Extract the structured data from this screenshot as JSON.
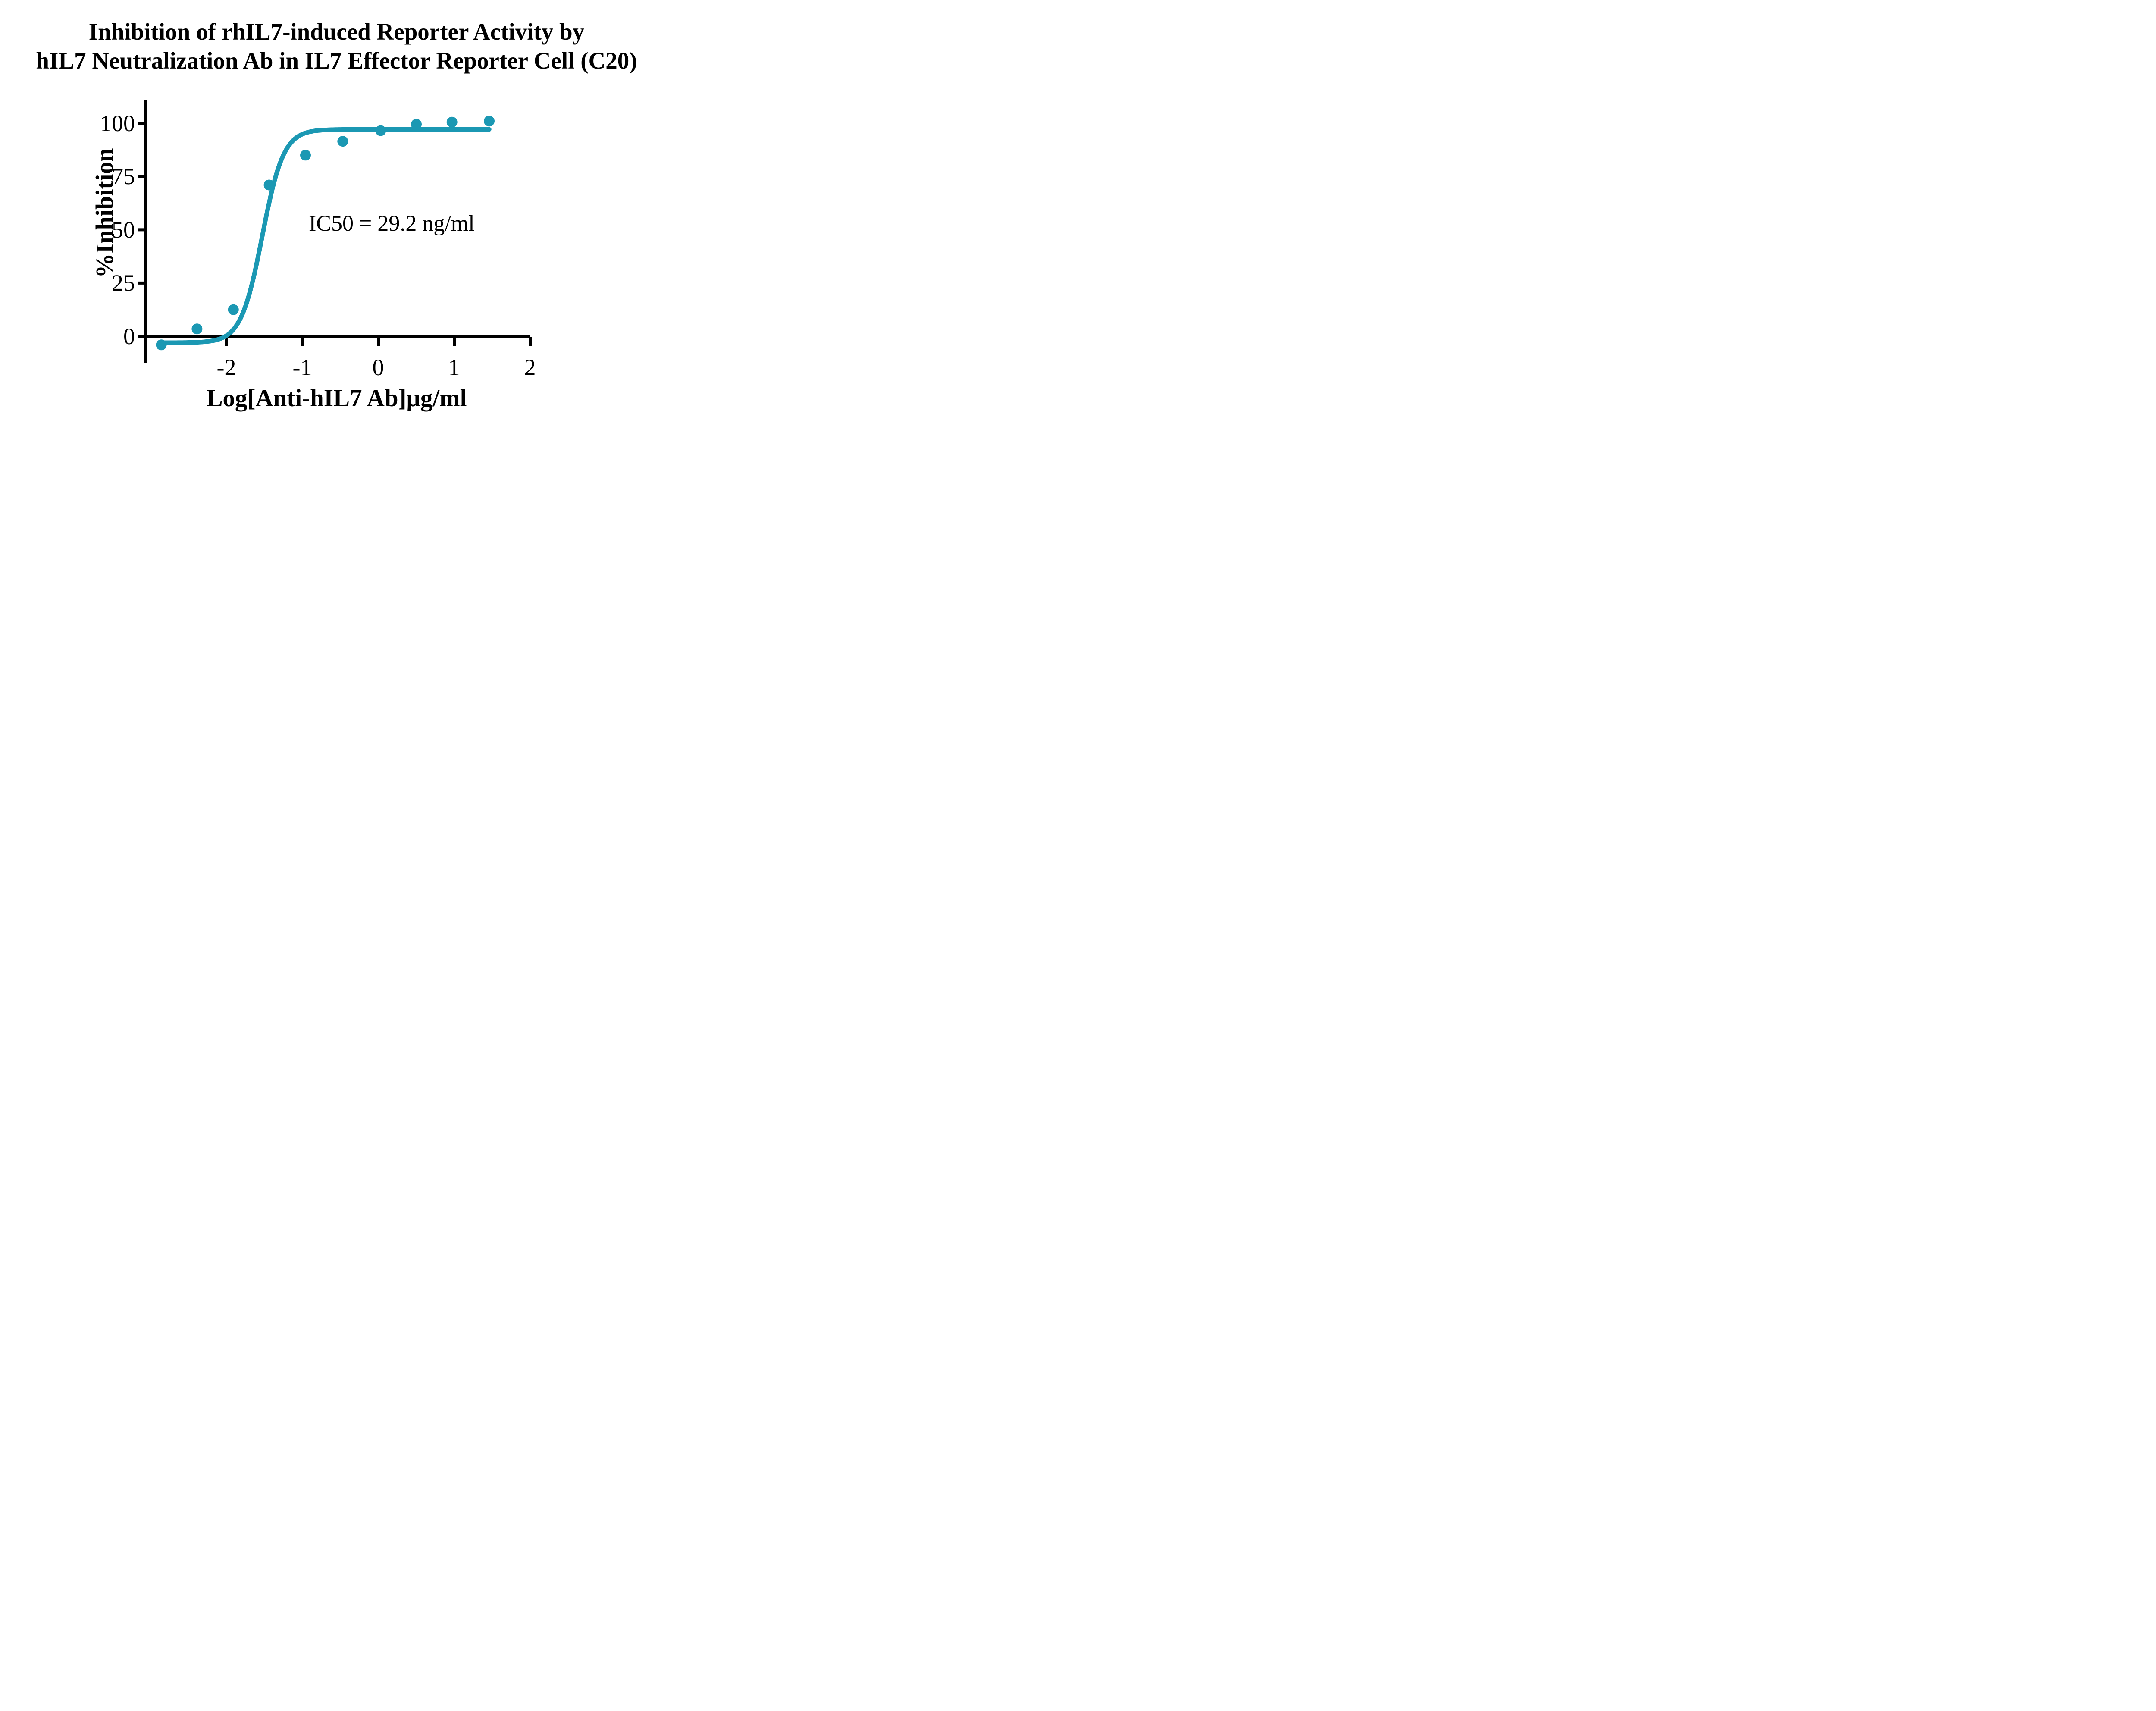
{
  "title": {
    "line1": "Inhibition of rhIL7-induced Reporter Activity by",
    "line2": "hIL7 Neutralization Ab in IL7 Effector Reporter Cell (C20)"
  },
  "axes": {
    "x": {
      "label": "Log[Anti-hIL7 Ab]μg/ml",
      "ticks": [
        -2,
        -1,
        0,
        1,
        2
      ],
      "tick_labels": [
        "-2",
        "-1",
        "0",
        "1",
        "2"
      ]
    },
    "y": {
      "label": "%Inhibition",
      "ticks": [
        0,
        25,
        50,
        75,
        100
      ],
      "tick_labels": [
        "0",
        "25",
        "50",
        "75",
        "100"
      ]
    }
  },
  "annotation": {
    "ic50": "IC50 = 29.2 ng/ml"
  },
  "colors": {
    "series": "#1b98b3",
    "axis": "#000000",
    "text": "#000000",
    "background": "#ffffff"
  },
  "chart_data": {
    "type": "scatter",
    "title": "Inhibition of rhIL7-induced Reporter Activity by hIL7 Neutralization Ab in IL7 Effector Reporter Cell (C20)",
    "xlabel": "Log[Anti-hIL7 Ab]μg/ml",
    "ylabel": "%Inhibition",
    "x_ticks": [
      -2,
      -1,
      0,
      1,
      2
    ],
    "y_ticks": [
      0,
      25,
      50,
      75,
      100
    ],
    "xlim": [
      -3.08,
      2.0
    ],
    "ylim": [
      -12,
      111
    ],
    "grid": false,
    "legend_position": "none",
    "series": [
      {
        "name": "Anti-hIL7 Ab",
        "marker": "circle",
        "x": [
          -2.86,
          -2.39,
          -1.91,
          -1.44,
          -0.96,
          -0.47,
          0.03,
          0.5,
          0.97,
          1.46
        ],
        "y": [
          -4,
          3.5,
          12.5,
          71,
          85,
          91.5,
          96.5,
          99.5,
          100.5,
          101
        ]
      }
    ],
    "fit_curve": {
      "model": "four_parameter_logistic",
      "bottom": -3,
      "top": 97.1,
      "log_ic50": -1.53,
      "hill_slope": 3.1,
      "x_start": -2.88,
      "x_end": 1.46
    },
    "annotations": [
      {
        "text": "IC50 = 29.2 ng/ml",
        "x": 0.17,
        "y": 53
      }
    ],
    "ic50_value": "29.2 ng/ml"
  }
}
